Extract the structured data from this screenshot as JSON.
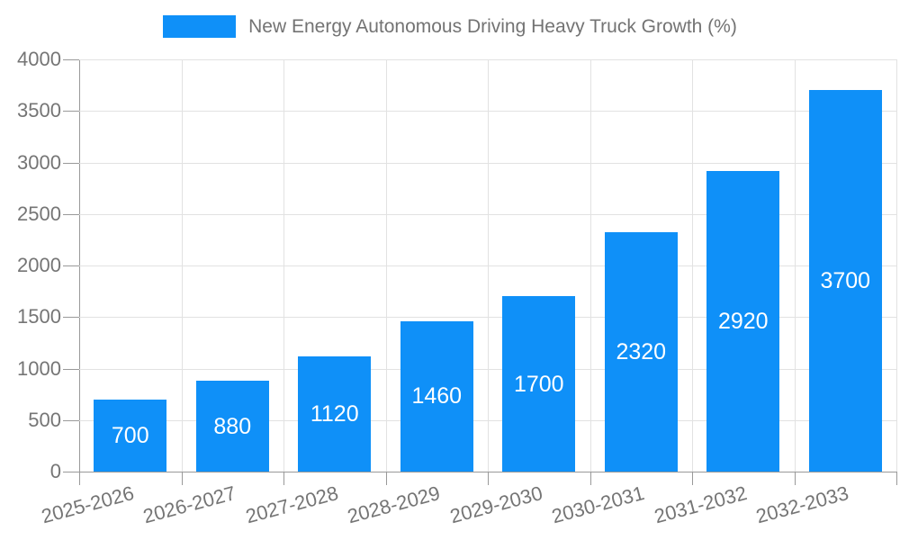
{
  "legend": {
    "label": "New Energy Autonomous Driving Heavy Truck Growth (%)"
  },
  "chart_data": {
    "type": "bar",
    "title": "New Energy Autonomous Driving Heavy Truck Growth (%)",
    "categories": [
      "2025-2026",
      "2026-2027",
      "2027-2028",
      "2028-2029",
      "2029-2030",
      "2030-2031",
      "2031-2032",
      "2032-2033"
    ],
    "values": [
      700,
      880,
      1120,
      1460,
      1700,
      2320,
      2920,
      3700
    ],
    "series_name": "New Energy Autonomous Driving Heavy Truck Growth (%)",
    "xlabel": "",
    "ylabel": "",
    "ylim": [
      0,
      4000
    ],
    "ytick_step": 500,
    "ytick_labels": [
      "0",
      "500",
      "1000",
      "1500",
      "2000",
      "2500",
      "3000",
      "3500",
      "4000"
    ],
    "grid": true,
    "legend_position": "top-center",
    "x_label_rotation_deg": -15,
    "value_labels_inside_bars": true,
    "colors": {
      "bar": "#0f90f8",
      "value_label": "#ffffff",
      "axis_text": "#757575",
      "legend_text": "#737373",
      "grid_line": "#e2e2e2",
      "axis_line": "#999999",
      "background": "#ffffff"
    }
  }
}
